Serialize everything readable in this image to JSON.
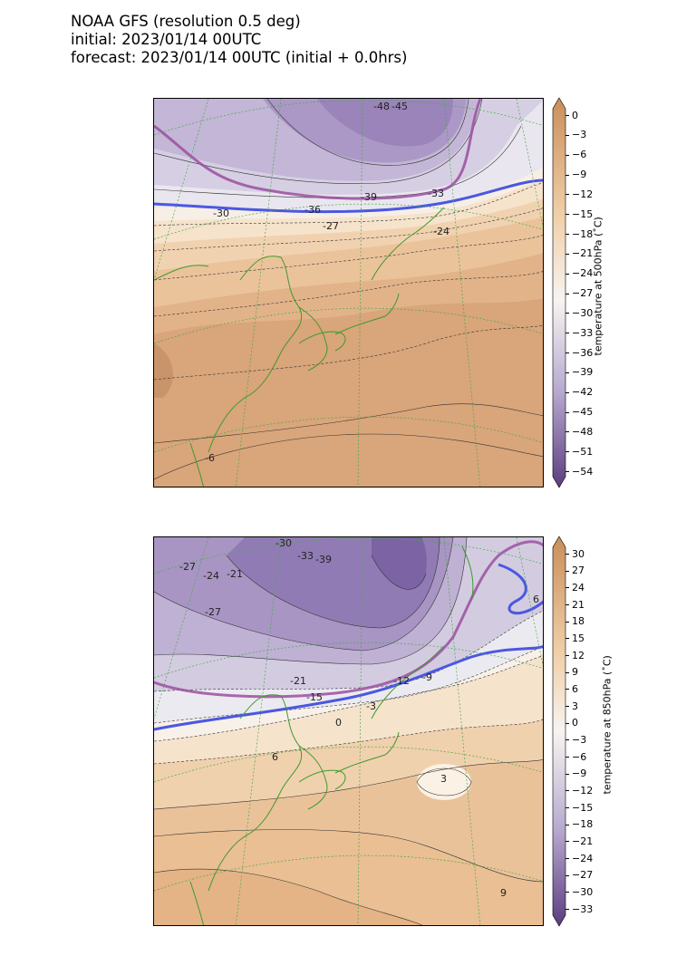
{
  "title": {
    "line1": "NOAA GFS (resolution 0.5 deg)",
    "line2": "initial: 2023/01/14 00UTC",
    "line3": "forecast: 2023/01/14 00UTC (initial + 0.0hrs)"
  },
  "colors": {
    "warm": "#d9a574",
    "neutral": "#f6f1ec",
    "cold": "#6f558f",
    "freezing_line": "#4a58e0",
    "contour_line": "#9b4fa0",
    "coast": "#3e9a2e",
    "grid": "#4aa84a"
  },
  "panels": [
    {
      "colorbar": {
        "label": "temperature at 500hPa (˚C)",
        "ticks": [
          "0",
          "−3",
          "−6",
          "−9",
          "−12",
          "−15",
          "−18",
          "−21",
          "−24",
          "−27",
          "−30",
          "−33",
          "−36",
          "−39",
          "−42",
          "−45",
          "−48",
          "−51",
          "−54"
        ]
      },
      "contour_labels": [
        "-48",
        "-45",
        "-39",
        "-33",
        "-36",
        "-30",
        "-27",
        "-24",
        "-6"
      ]
    },
    {
      "colorbar": {
        "label": "temperature at 850hPa (˚C)",
        "ticks": [
          "30",
          "27",
          "24",
          "21",
          "18",
          "15",
          "12",
          "9",
          "6",
          "3",
          "0",
          "−3",
          "−6",
          "−9",
          "−12",
          "−15",
          "−18",
          "−21",
          "−24",
          "−27",
          "−30",
          "−33"
        ]
      },
      "contour_labels": [
        "-30",
        "-33",
        "-39",
        "-27",
        "-24",
        "-21",
        "-27",
        "-21",
        "-15",
        "-12",
        "-9",
        "-3",
        "0",
        "6",
        "3",
        "9",
        "6"
      ]
    }
  ]
}
